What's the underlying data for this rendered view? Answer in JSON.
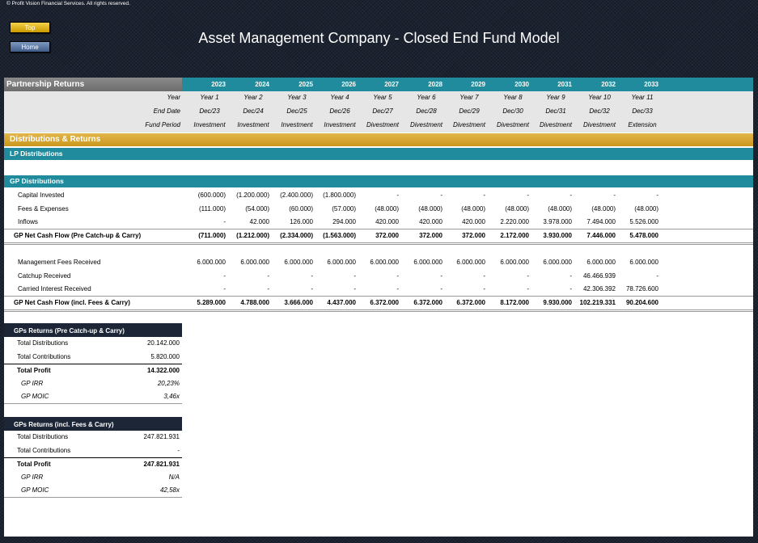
{
  "copyright": "© Profit Vision Financial Services. All rights reserved.",
  "nav": {
    "top_label": "Top",
    "home_label": "Home"
  },
  "title": "Asset Management Company - Closed End Fund Model",
  "colors": {
    "teal": "#1f8b9c",
    "gold": "#d4a733",
    "navy": "#1c2637",
    "grey_header": "#7a7a7a"
  },
  "section_header": "Partnership Returns",
  "years": [
    "2023",
    "2024",
    "2025",
    "2026",
    "2027",
    "2028",
    "2029",
    "2030",
    "2031",
    "2032",
    "2033"
  ],
  "meta": {
    "year_label": "Year",
    "end_date_label": "End Date",
    "fund_period_label": "Fund Period",
    "year_nums": [
      "Year 1",
      "Year 2",
      "Year 3",
      "Year 4",
      "Year 5",
      "Year 6",
      "Year 7",
      "Year 8",
      "Year 9",
      "Year 10",
      "Year 11"
    ],
    "end_dates": [
      "Dec/23",
      "Dec/24",
      "Dec/25",
      "Dec/26",
      "Dec/27",
      "Dec/28",
      "Dec/29",
      "Dec/30",
      "Dec/31",
      "Dec/32",
      "Dec/33"
    ],
    "periods": [
      "Investment",
      "Investment",
      "Investment",
      "Investment",
      "Divestment",
      "Divestment",
      "Divestment",
      "Divestment",
      "Divestment",
      "Divestment",
      "Extension"
    ]
  },
  "dist_header": "Distributions & Returns",
  "lp_header": "LP Distributions",
  "gp_header": "GP Distributions",
  "gp_rows": [
    {
      "label": "Capital Invested",
      "bold": false,
      "values": [
        "(600.000)",
        "(1.200.000)",
        "(2.400.000)",
        "(1.800.000)",
        "-",
        "-",
        "-",
        "-",
        "-",
        "-",
        "-"
      ]
    },
    {
      "label": "Fees & Expenses",
      "bold": false,
      "values": [
        "(111.000)",
        "(54.000)",
        "(60.000)",
        "(57.000)",
        "(48.000)",
        "(48.000)",
        "(48.000)",
        "(48.000)",
        "(48.000)",
        "(48.000)",
        "(48.000)"
      ]
    },
    {
      "label": "Inflows",
      "bold": false,
      "values": [
        "-",
        "42.000",
        "126.000",
        "294.000",
        "420.000",
        "420.000",
        "420.000",
        "2.220.000",
        "3.978.000",
        "7.494.000",
        "5.526.000"
      ]
    },
    {
      "label": "GP Net Cash Flow (Pre Catch-up & Carry)",
      "bold": true,
      "values": [
        "(711.000)",
        "(1.212.000)",
        "(2.334.000)",
        "(1.563.000)",
        "372.000",
        "372.000",
        "372.000",
        "2.172.000",
        "3.930.000",
        "7.446.000",
        "5.478.000"
      ]
    }
  ],
  "fee_rows": [
    {
      "label": "Management Fees Received",
      "bold": false,
      "values": [
        "6.000.000",
        "6.000.000",
        "6.000.000",
        "6.000.000",
        "6.000.000",
        "6.000.000",
        "6.000.000",
        "6.000.000",
        "6.000.000",
        "6.000.000",
        "6.000.000"
      ]
    },
    {
      "label": "Catchup Received",
      "bold": false,
      "values": [
        "-",
        "-",
        "-",
        "-",
        "-",
        "-",
        "-",
        "-",
        "-",
        "46.466.939",
        "-"
      ]
    },
    {
      "label": "Carried Interest Received",
      "bold": false,
      "values": [
        "-",
        "-",
        "-",
        "-",
        "-",
        "-",
        "-",
        "-",
        "-",
        "42.306.392",
        "78.726.600"
      ]
    },
    {
      "label": "GP Net Cash Flow (incl. Fees & Carry)",
      "bold": true,
      "values": [
        "5.289.000",
        "4.788.000",
        "3.666.000",
        "4.437.000",
        "6.372.000",
        "6.372.000",
        "6.372.000",
        "8.172.000",
        "9.930.000",
        "102.219.331",
        "90.204.600"
      ]
    }
  ],
  "summary1": {
    "title": "GPs Returns (Pre Catch-up & Carry)",
    "rows": [
      {
        "label": "Total Distributions",
        "value": "20.142.000"
      },
      {
        "label": "Total Contributions",
        "value": "5.820.000"
      }
    ],
    "total": {
      "label": "Total Profit",
      "value": "14.322.000"
    },
    "metrics": [
      {
        "label": "GP IRR",
        "value": "20,23%"
      },
      {
        "label": "GP MOIC",
        "value": "3,46x"
      }
    ]
  },
  "summary2": {
    "title": "GPs Returns (incl. Fees & Carry)",
    "rows": [
      {
        "label": "Total Distributions",
        "value": "247.821.931"
      },
      {
        "label": "Total Contributions",
        "value": "-"
      }
    ],
    "total": {
      "label": "Total Profit",
      "value": "247.821.931"
    },
    "metrics": [
      {
        "label": "GP IRR",
        "value": "N/A"
      },
      {
        "label": "GP MOIC",
        "value": "42,58x"
      }
    ]
  }
}
